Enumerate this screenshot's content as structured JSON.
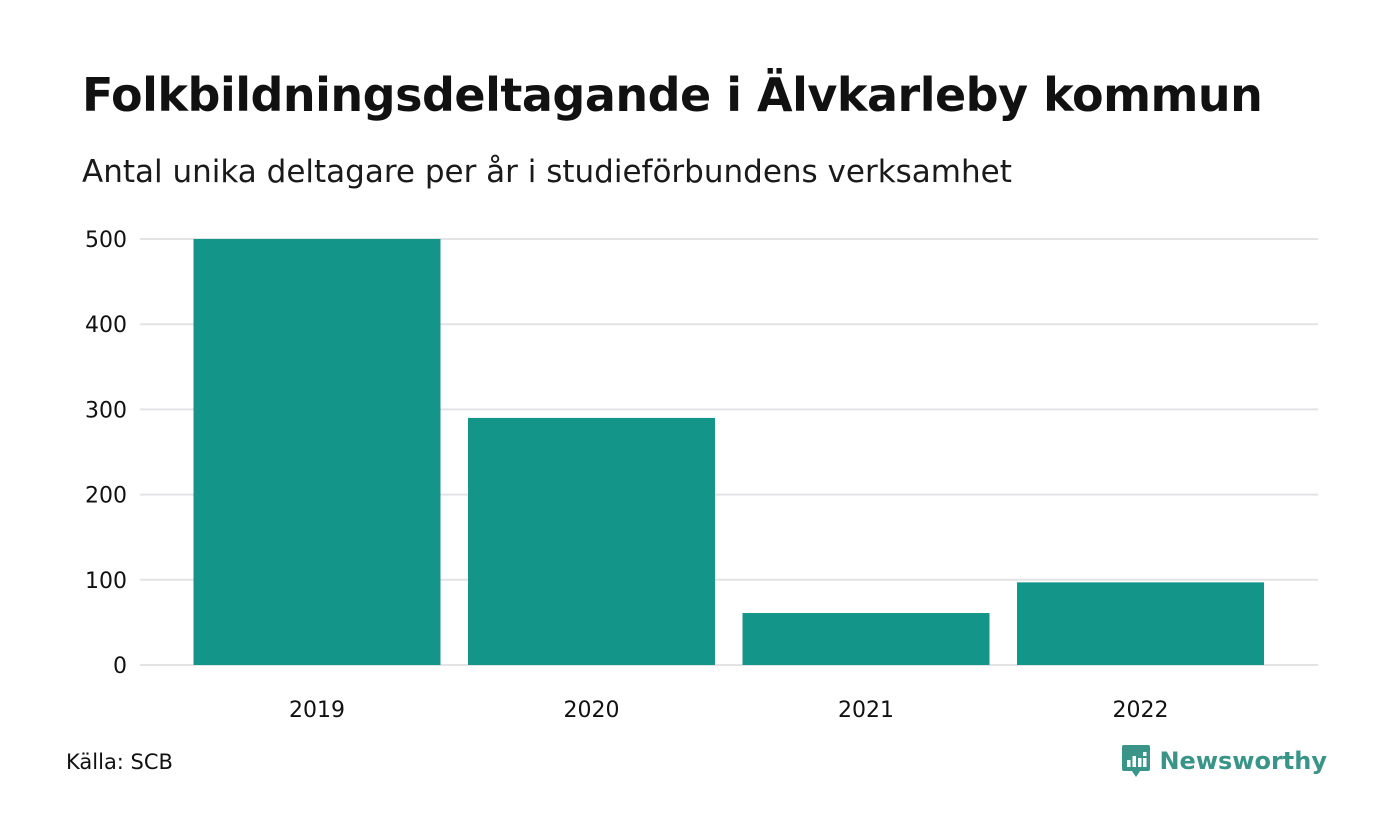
{
  "header": {
    "title": "Folkbildningsdeltagande i Älvkarleby kommun",
    "subtitle": "Antal unika deltagare per år i studieförbundens verksamhet"
  },
  "footer": {
    "source": "Källa: SCB",
    "brand": "Newsworthy",
    "brand_icon": "newsworthy-chart-bubble-icon"
  },
  "colors": {
    "bar": "#14958a",
    "grid": "#e3e3e6",
    "brand": "#3a9488"
  },
  "chart_data": {
    "type": "bar",
    "categories": [
      "2019",
      "2020",
      "2021",
      "2022"
    ],
    "values": [
      500,
      290,
      61,
      97
    ],
    "ylim": [
      0,
      500
    ],
    "yticks": [
      0,
      100,
      200,
      300,
      400,
      500
    ],
    "ytick_labels": [
      "0",
      "100",
      "200",
      "300",
      "400",
      "500"
    ],
    "grid": true,
    "xlabel": "",
    "ylabel": ""
  }
}
